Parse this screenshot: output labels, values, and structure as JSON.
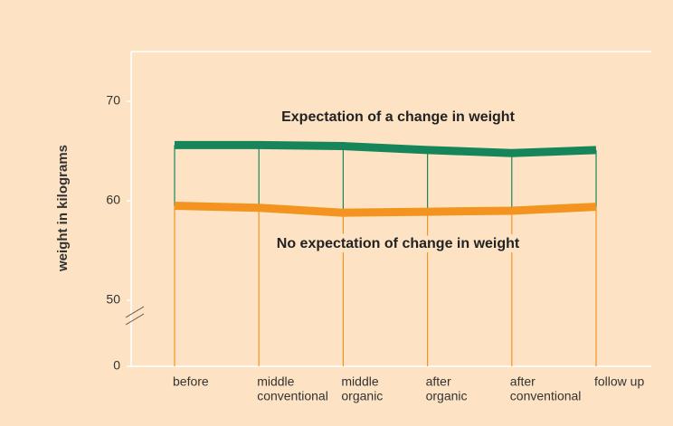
{
  "chart_data": {
    "type": "line",
    "ylabel": "weight in kilograms",
    "categories": [
      [
        "before"
      ],
      [
        "middle",
        "conventional"
      ],
      [
        "middle",
        "organic"
      ],
      [
        "after",
        "organic"
      ],
      [
        "after",
        "conventional"
      ],
      [
        "follow up"
      ]
    ],
    "series": [
      {
        "name": "Expectation of a change in weight",
        "color": "#16865a",
        "values": [
          65.6,
          65.6,
          65.5,
          65.1,
          64.8,
          65.1
        ]
      },
      {
        "name": "No expectation of change in weight",
        "color": "#f39420",
        "values": [
          59.5,
          59.3,
          58.8,
          58.9,
          59.0,
          59.4
        ]
      }
    ],
    "ylim": [
      0,
      75
    ],
    "yticks": [
      0,
      50,
      60,
      70
    ],
    "y_break": true
  }
}
